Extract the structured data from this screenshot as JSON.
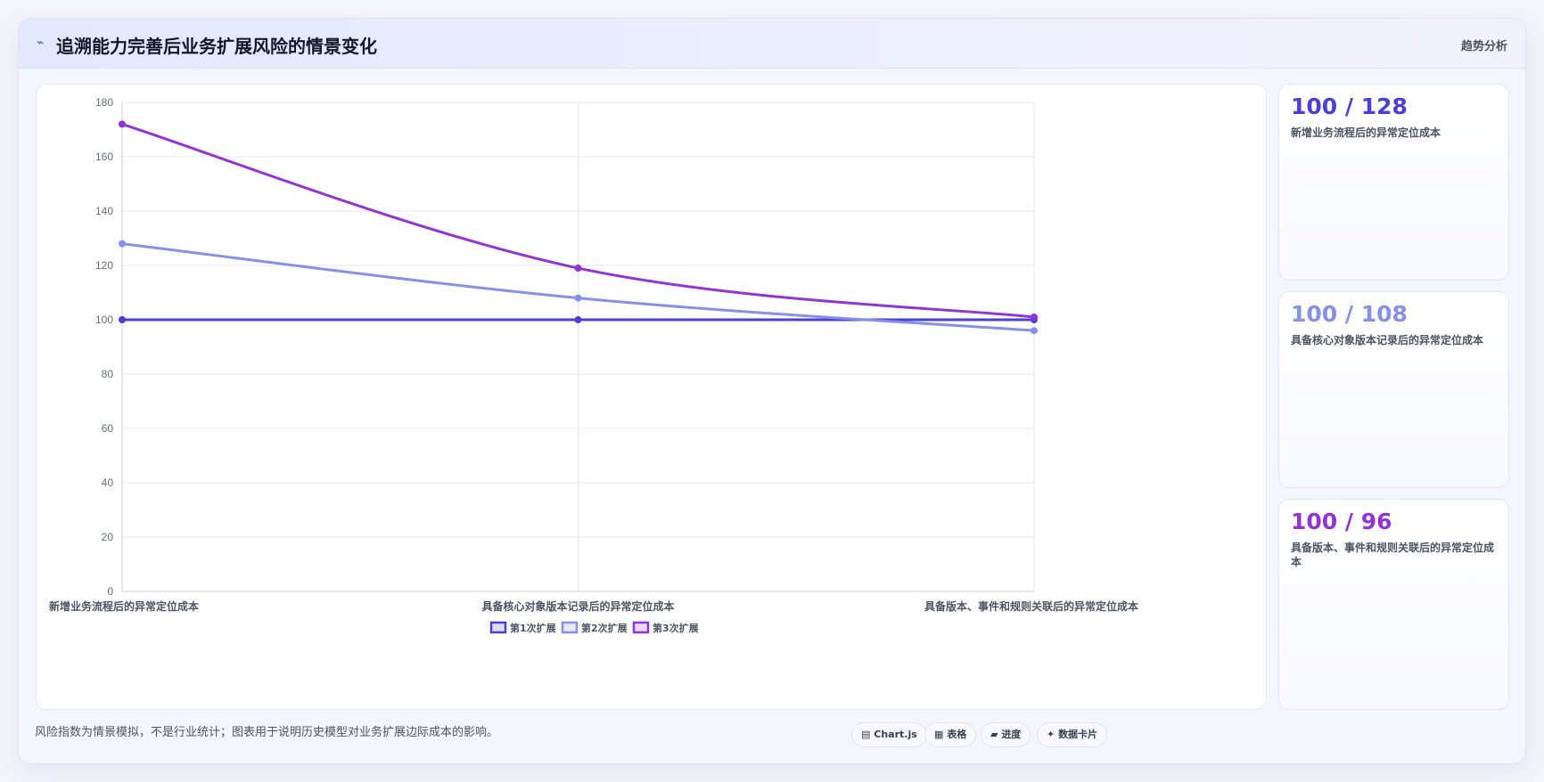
{
  "header": {
    "icon": "trend-icon",
    "icon_glyph": "⌁",
    "title": "追溯能力完善后业务扩展风险的情景变化",
    "right_label": "趋势分析"
  },
  "colors": {
    "series1": "#4b3fd6",
    "series2": "#8590e8",
    "series3": "#9233d6",
    "grid": "#e6e7ee",
    "tick": "#666e7c"
  },
  "chart_data": {
    "type": "line",
    "categories": [
      "新增业务流程后的异常定位成本",
      "具备核心对象版本记录后的异常定位成本",
      "具备版本、事件和规则关联后的异常定位成本"
    ],
    "series": [
      {
        "name": "第1次扩展",
        "values": [
          100,
          100,
          100
        ],
        "color": "#4b3fd6"
      },
      {
        "name": "第2次扩展",
        "values": [
          128,
          108,
          96
        ],
        "color": "#8590e8"
      },
      {
        "name": "第3次扩展",
        "values": [
          172,
          119,
          101
        ],
        "color": "#9233d6"
      }
    ],
    "ylim": [
      0,
      180
    ],
    "yticks": [
      0,
      20,
      40,
      60,
      80,
      100,
      120,
      140,
      160,
      180
    ],
    "grid": true,
    "legend": "bottom-center"
  },
  "cards": [
    {
      "value": "100 / 128",
      "label": "新增业务流程后的异常定位成本",
      "color": "#4b3fd6"
    },
    {
      "value": "100 / 108",
      "label": "具备核心对象版本记录后的异常定位成本",
      "color": "#8590e8"
    },
    {
      "value": "100 / 96",
      "label": "具备版本、事件和规则关联后的异常定位成本",
      "color": "#9233d6"
    }
  ],
  "footnote": "风险指数为情景模拟，不是行业统计；图表用于说明历史模型对业务扩展边际成本的影响。",
  "chips": [
    {
      "icon": "chart-icon",
      "glyph": "▤",
      "label": "Chart.js"
    },
    {
      "icon": "table-icon",
      "glyph": "▦",
      "label": "表格"
    },
    {
      "icon": "progress-icon",
      "glyph": "▰",
      "label": "进度"
    },
    {
      "icon": "sparkle-icon",
      "glyph": "✦",
      "label": "数据卡片"
    }
  ]
}
